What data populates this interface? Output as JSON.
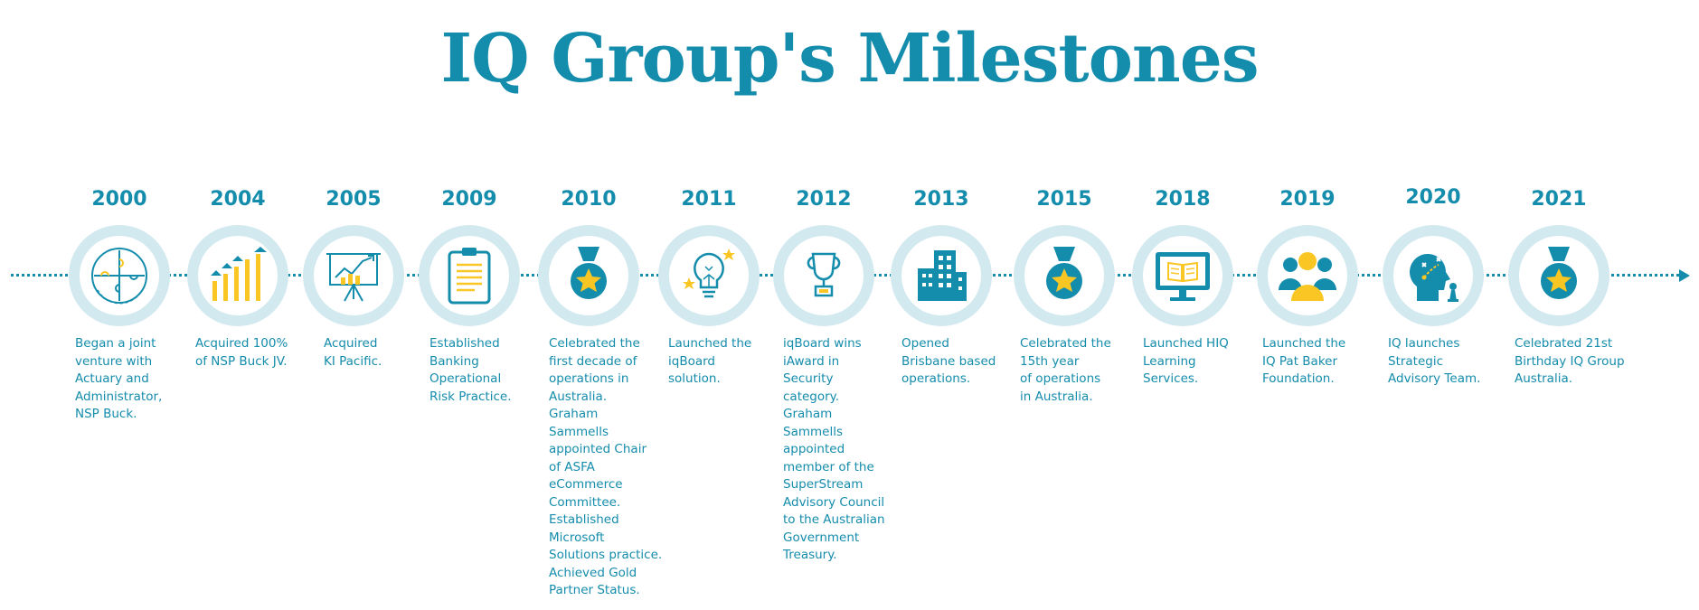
{
  "title": "IQ Group's Milestones",
  "colors": {
    "primary": "#148cac",
    "accent": "#f9c623",
    "ring": "#d3e9f0"
  },
  "milestones": [
    {
      "year": "2000",
      "icon": "puzzle-icon",
      "lines": [
        "Began a joint",
        "venture with",
        "Actuary and",
        "Administrator,",
        "NSP Buck."
      ]
    },
    {
      "year": "2004",
      "icon": "growth-bar-chart-icon",
      "lines": [
        "Acquired 100%",
        "of NSP Buck JV."
      ]
    },
    {
      "year": "2005",
      "icon": "presentation-board-icon",
      "lines": [
        "Acquired",
        "KI Pacific."
      ]
    },
    {
      "year": "2009",
      "icon": "clipboard-icon",
      "lines": [
        "Established",
        "Banking",
        "Operational",
        "Risk Practice."
      ]
    },
    {
      "year": "2010",
      "icon": "medal-icon",
      "lines": [
        "Celebrated the",
        "first decade of",
        "operations in",
        "Australia.",
        "Graham",
        "Sammells",
        "appointed Chair",
        "of ASFA",
        "eCommerce",
        "Committee.",
        "Established",
        "Microsoft",
        "Solutions practice.",
        "Achieved Gold",
        "Partner Status."
      ]
    },
    {
      "year": "2011",
      "icon": "lightbulb-icon",
      "lines": [
        "Launched the",
        "iqBoard",
        "solution."
      ]
    },
    {
      "year": "2012",
      "icon": "trophy-icon",
      "lines": [
        "iqBoard wins",
        "iAward in",
        "Security",
        "category.",
        "Graham",
        "Sammells",
        "appointed",
        "member of the",
        "SuperStream",
        "Advisory Council",
        "to the Australian",
        "Government",
        "Treasury."
      ]
    },
    {
      "year": "2013",
      "icon": "building-icon",
      "lines": [
        "Opened",
        "Brisbane based",
        "operations."
      ]
    },
    {
      "year": "2015",
      "icon": "medal-icon",
      "lines": [
        "Celebrated the",
        "15th year",
        "of operations",
        "in Australia."
      ]
    },
    {
      "year": "2018",
      "icon": "monitor-book-icon",
      "lines": [
        "Launched HIQ",
        "Learning",
        "Services."
      ]
    },
    {
      "year": "2019",
      "icon": "people-icon",
      "lines": [
        "Launched the",
        "IQ Pat Baker",
        "Foundation."
      ]
    },
    {
      "year": "2020",
      "icon": "strategy-head-icon",
      "lines": [
        "IQ launches",
        "Strategic",
        "Advisory Team."
      ]
    },
    {
      "year": "2021",
      "icon": "medal-icon",
      "lines": [
        "Celebrated 21st",
        "Birthday IQ Group",
        "Australia."
      ]
    }
  ]
}
